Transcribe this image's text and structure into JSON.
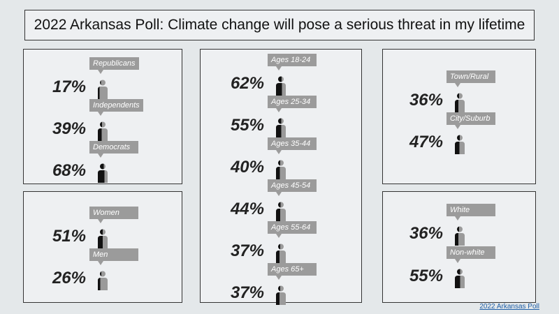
{
  "title": "2022 Arkansas Poll: Climate change will pose a serious threat in my lifetime",
  "source_link": "2022 Arkansas Poll",
  "colors": {
    "agree": "#111111",
    "disagree": "#9a9a9a"
  },
  "chart_data": [
    {
      "type": "pictograph",
      "group": "party",
      "categories": [
        "Republicans",
        "Independents",
        "Democrats"
      ],
      "values": [
        17,
        39,
        68
      ],
      "labels": [
        "17%",
        "39%",
        "68%"
      ]
    },
    {
      "type": "pictograph",
      "group": "gender",
      "categories": [
        "Women",
        "Men"
      ],
      "values": [
        51,
        26
      ],
      "labels": [
        "51%",
        "26%"
      ]
    },
    {
      "type": "pictograph",
      "group": "age",
      "categories": [
        "Ages 18-24",
        "Ages 25-34",
        "Ages 35-44",
        "Ages 45-54",
        "Ages 55-64",
        "Ages 65+"
      ],
      "values": [
        62,
        55,
        40,
        44,
        37,
        37
      ],
      "labels": [
        "62%",
        "55%",
        "40%",
        "44%",
        "37%",
        "37%"
      ]
    },
    {
      "type": "pictograph",
      "group": "place",
      "categories": [
        "Town/Rural",
        "City/Suburb"
      ],
      "values": [
        36,
        47
      ],
      "labels": [
        "36%",
        "47%"
      ]
    },
    {
      "type": "pictograph",
      "group": "race",
      "categories": [
        "White",
        "Non-white"
      ],
      "values": [
        36,
        55
      ],
      "labels": [
        "36%",
        "55%"
      ]
    }
  ]
}
